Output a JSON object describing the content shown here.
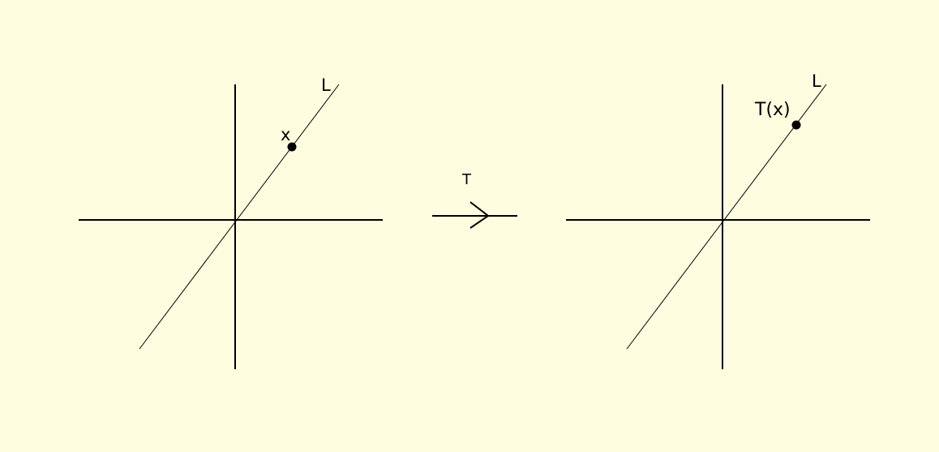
{
  "colors": {
    "background": "#fefde0",
    "ink": "#000000"
  },
  "left_panel": {
    "line_label": "L",
    "point_label": "x"
  },
  "transform": {
    "label": "T"
  },
  "right_panel": {
    "line_label": "L",
    "point_label": "T(x)"
  }
}
